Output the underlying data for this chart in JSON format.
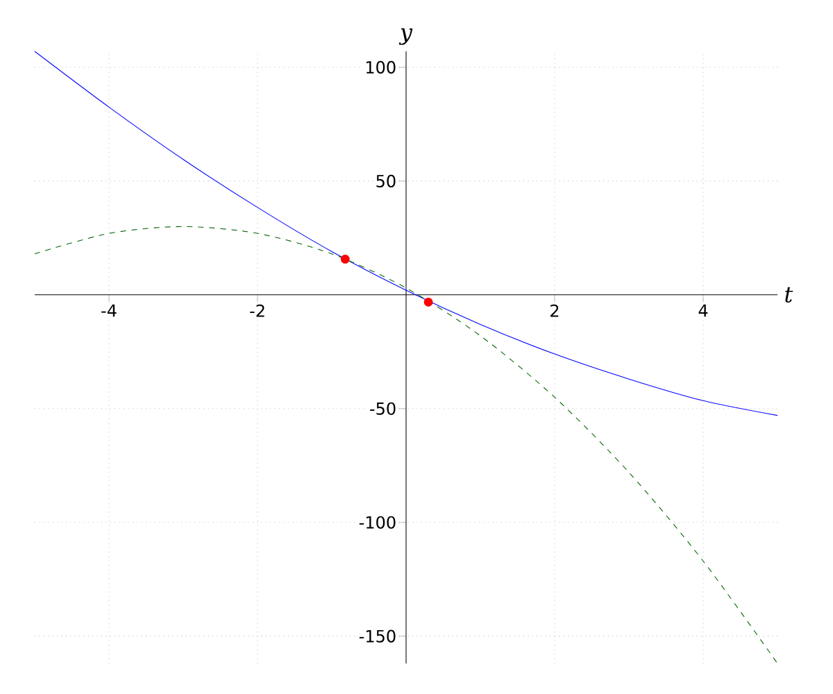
{
  "chart_data": {
    "type": "line",
    "xlabel": "t",
    "ylabel": "y",
    "xlim": [
      -5,
      5
    ],
    "ylim": [
      -162,
      107
    ],
    "xticks": [
      -4,
      -2,
      2,
      4
    ],
    "yticks": [
      -150,
      -100,
      -50,
      50,
      100
    ],
    "grid": true,
    "series": [
      {
        "color": "#0000ff",
        "line_style": "solid",
        "x": [
          -5,
          -4,
          -3,
          -2,
          -1,
          0,
          1,
          2,
          3,
          4,
          5
        ],
        "values": [
          107,
          82.5,
          59.5,
          38.4,
          19,
          2,
          -13,
          -26,
          -37,
          -46.5,
          -53
        ]
      },
      {
        "color": "#006400",
        "line_style": "dashed",
        "x": [
          -5,
          -4,
          -3,
          -2,
          -1,
          0,
          1,
          2,
          3,
          4,
          5
        ],
        "values": [
          18,
          27,
          30,
          27,
          18,
          3,
          -18,
          -45,
          -78,
          -117,
          -162
        ]
      },
      {
        "type": "scatter",
        "color": "#ff0000",
        "marker": "circle",
        "x": [
          -0.82,
          0.3
        ],
        "values": [
          15.7,
          -3.2
        ]
      }
    ]
  }
}
